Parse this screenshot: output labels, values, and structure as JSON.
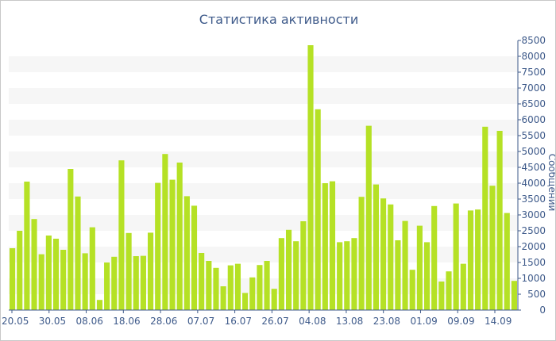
{
  "chart_data": {
    "type": "bar",
    "title": "Статистика активности",
    "xlabel": "",
    "ylabel": "Сообщений",
    "ylim": [
      0,
      8500
    ],
    "y_ticks": [
      0,
      500,
      1000,
      1500,
      2000,
      2500,
      3000,
      3500,
      4000,
      4500,
      5000,
      5500,
      6000,
      6500,
      7000,
      7500,
      8000,
      8500
    ],
    "x_tick_labels": [
      "20.05",
      "30.05",
      "08.06",
      "18.06",
      "28.06",
      "07.07",
      "16.07",
      "26.07",
      "04.08",
      "13.08",
      "23.08",
      "01.09",
      "09.09",
      "14.09"
    ],
    "y_axis_side": "right",
    "grid": "horizontal bands",
    "legend": "none",
    "bar_color": "#b5e125",
    "band_color": "#f6f6f6",
    "axis_color": "#3e5a8a",
    "values": [
      1950,
      2500,
      4050,
      2870,
      1760,
      2350,
      2250,
      1900,
      4450,
      3580,
      1790,
      2610,
      320,
      1500,
      1680,
      4720,
      2430,
      1700,
      1710,
      2440,
      4010,
      4920,
      4110,
      4650,
      3590,
      3290,
      1800,
      1550,
      1330,
      750,
      1410,
      1460,
      540,
      1030,
      1420,
      1550,
      670,
      2270,
      2530,
      2170,
      2800,
      8350,
      6330,
      4000,
      4060,
      2140,
      2170,
      2270,
      3570,
      5810,
      3960,
      3520,
      3330,
      2200,
      2810,
      1270,
      2660,
      2140,
      3280,
      900,
      1220,
      3360,
      1460,
      3140,
      3170,
      5780,
      3920,
      5650,
      3060,
      920
    ]
  }
}
